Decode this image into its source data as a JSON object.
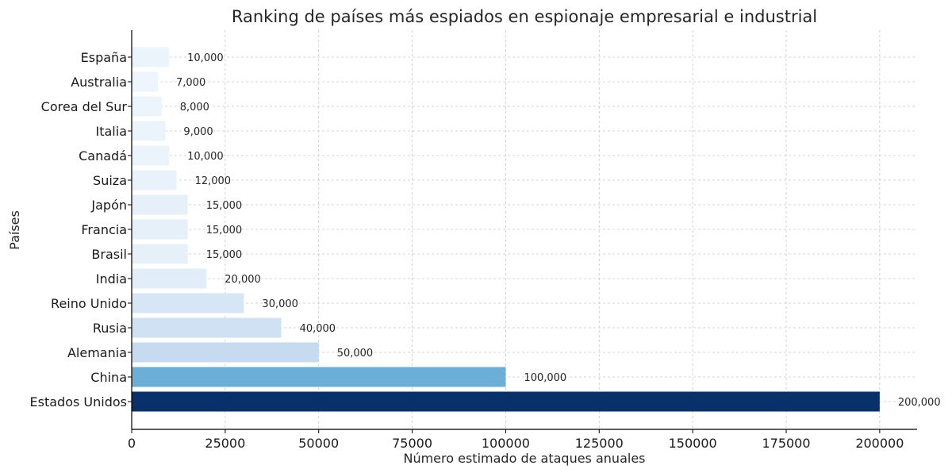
{
  "chart_data": {
    "type": "bar",
    "orientation": "horizontal",
    "title": "Ranking de países más espiados en espionaje empresarial e industrial",
    "xlabel": "Número estimado de ataques anuales",
    "ylabel": "Países",
    "xlim": [
      0,
      210000
    ],
    "xticks": [
      0,
      25000,
      50000,
      75000,
      100000,
      125000,
      150000,
      175000,
      200000
    ],
    "xtick_labels": [
      "0",
      "25000",
      "50000",
      "75000",
      "100000",
      "125000",
      "150000",
      "175000",
      "200000"
    ],
    "grid": true,
    "categories": [
      "Estados Unidos",
      "China",
      "Alemania",
      "Rusia",
      "Reino Unido",
      "India",
      "Brasil",
      "Francia",
      "Japón",
      "Suiza",
      "Canadá",
      "Italia",
      "Corea del Sur",
      "Australia",
      "España"
    ],
    "values": [
      200000,
      100000,
      50000,
      40000,
      30000,
      20000,
      15000,
      15000,
      15000,
      12000,
      10000,
      9000,
      8000,
      7000,
      10000
    ],
    "value_labels": [
      "200,000",
      "100,000",
      "50,000",
      "40,000",
      "30,000",
      "20,000",
      "15,000",
      "15,000",
      "15,000",
      "12,000",
      "10,000",
      "9,000",
      "8,000",
      "7,000",
      "10,000"
    ],
    "colors": [
      "#08306b",
      "#6baed6",
      "#c6dbef",
      "#cfe1f2",
      "#d6e6f4",
      "#e1edf8",
      "#e6f0f9",
      "#e6f0f9",
      "#e6f0f9",
      "#e9f2fa",
      "#ebf3fb",
      "#ecf4fb",
      "#edf5fc",
      "#eef5fc",
      "#ebf3fb"
    ]
  }
}
